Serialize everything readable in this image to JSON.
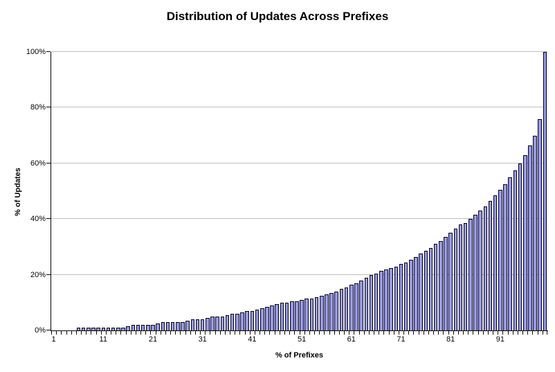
{
  "chart_data": {
    "type": "bar",
    "title": "Distribution of Updates Across Prefixes",
    "xlabel": "% of Prefixes",
    "ylabel": "% of Updates",
    "x_range": [
      1,
      100
    ],
    "x_ticks": [
      1,
      11,
      21,
      31,
      41,
      51,
      61,
      71,
      81,
      91
    ],
    "x_tick_labels": [
      "1",
      "11",
      "21",
      "31",
      "41",
      "51",
      "61",
      "71",
      "81",
      "91"
    ],
    "y_ticks": [
      0,
      20,
      40,
      60,
      80,
      100
    ],
    "y_tick_labels": [
      "0%",
      "20%",
      "40%",
      "60%",
      "80%",
      "100%"
    ],
    "ylim": [
      0,
      100
    ],
    "grid": "horizontal-major",
    "legend": false,
    "values": [
      0.1,
      0.1,
      0.2,
      0.2,
      0.3,
      1,
      1,
      1,
      1,
      1,
      1,
      1,
      1,
      1,
      1,
      1.5,
      2,
      2,
      2,
      2,
      2,
      2.5,
      3,
      3,
      3,
      3,
      3,
      3.5,
      4,
      4,
      4,
      4.5,
      5,
      5,
      5,
      5.5,
      6,
      6,
      6.5,
      7,
      7,
      7.5,
      8,
      8.5,
      9,
      9.5,
      10,
      10,
      10.5,
      10.5,
      11,
      11.5,
      11.5,
      12,
      12.5,
      13,
      13.5,
      14,
      15,
      15.5,
      16.5,
      17,
      18,
      19,
      20,
      20.5,
      21.5,
      22,
      22.5,
      23,
      24,
      24.5,
      25.5,
      26.5,
      27.5,
      28.5,
      29.5,
      31,
      32,
      33.5,
      35,
      36.5,
      38,
      38.5,
      40,
      41.5,
      43,
      44.5,
      46.5,
      48.5,
      50.5,
      52.5,
      55,
      57.5,
      60,
      63,
      66.5,
      70,
      76,
      100
    ],
    "colors": {
      "bar_fill": "#9999FF",
      "bar_border": "#000000",
      "gridline": "#C0C0C0",
      "axis": "#000000",
      "text": "#000000",
      "background": "#FFFFFF"
    }
  }
}
